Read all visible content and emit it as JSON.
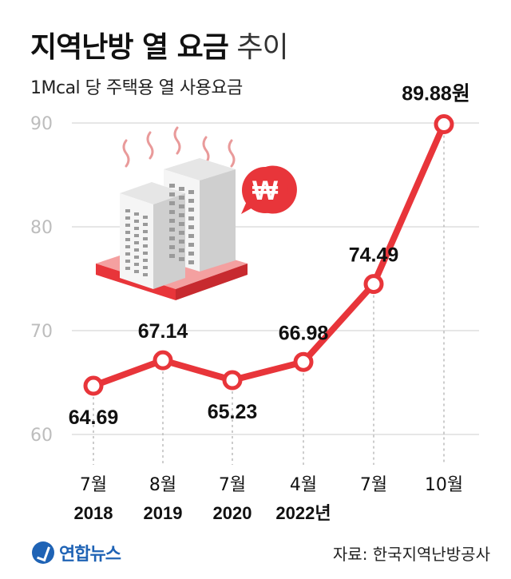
{
  "header": {
    "title_main": "지역난방 열 요금",
    "title_sub": "추이",
    "subtitle": "1Mcal 당 주택용 열 사용요금"
  },
  "footer": {
    "logo_text": "연합뉴스",
    "source": "자료: 한국지역난방공사"
  },
  "colors": {
    "line": "#e8353a",
    "point_fill": "#ffffff",
    "grid": "#cccccc",
    "tick_text": "#bdbdbd",
    "illustration_accent": "#e8353a",
    "illustration_base": "#f4a0a0"
  },
  "icons": [
    "buildings-illustration",
    "won-currency-icon",
    "steam-icon",
    "yonhap-logo-icon"
  ],
  "chart_data": {
    "type": "line",
    "title": "지역난방 열 요금 추이",
    "subtitle": "1Mcal 당 주택용 열 사용요금",
    "categories": [
      {
        "month": "7월",
        "year": "2018"
      },
      {
        "month": "8월",
        "year": "2019"
      },
      {
        "month": "7월",
        "year": "2020"
      },
      {
        "month": "4월",
        "year": "2022년"
      },
      {
        "month": "7월",
        "year": ""
      },
      {
        "month": "10월",
        "year": ""
      }
    ],
    "values": [
      64.69,
      67.14,
      65.23,
      66.98,
      74.49,
      89.88
    ],
    "value_labels": [
      "64.69",
      "67.14",
      "65.23",
      "66.98",
      "74.49",
      "89.88원"
    ],
    "label_positions": [
      "below",
      "above",
      "below",
      "above",
      "above",
      "above"
    ],
    "yticks": [
      "60",
      "70",
      "80",
      "90"
    ],
    "ylim": [
      60,
      90
    ],
    "grid": true
  }
}
